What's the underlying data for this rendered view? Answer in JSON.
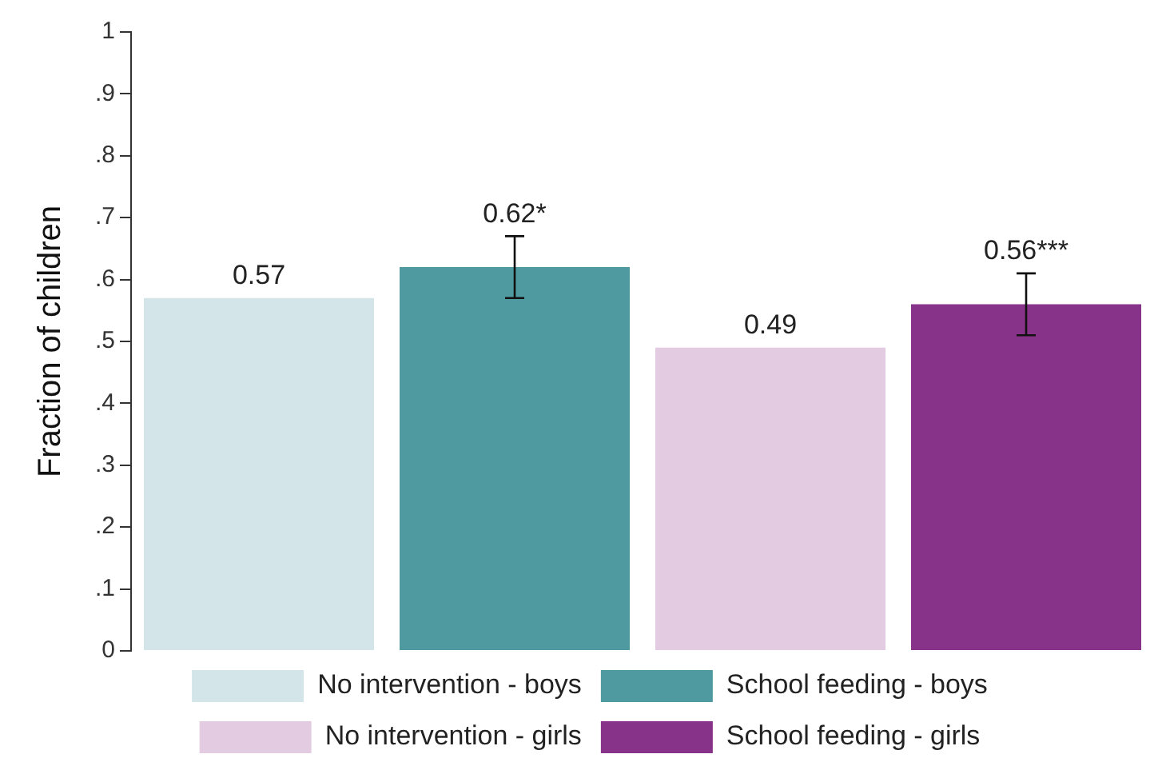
{
  "chart_data": {
    "type": "bar",
    "ylabel": "Fraction of children",
    "categories": [
      null,
      null,
      null,
      null
    ],
    "stacked": true,
    "series": [
      {
        "name": "No intervention - boys",
        "color": "#d3e5e8",
        "values": [
          0.57,
          null,
          null,
          null
        ],
        "value_labels": [
          "0.57",
          null,
          null,
          null
        ],
        "errors": [
          null,
          null,
          null,
          null
        ]
      },
      {
        "name": "School feeding - boys",
        "color": "#4f9aa1",
        "values": [
          null,
          0.62,
          null,
          null
        ],
        "value_labels": [
          null,
          "0.62*",
          null,
          null
        ],
        "errors": [
          null,
          0.05,
          null,
          null
        ]
      },
      {
        "name": "No intervention - girls",
        "color": "#e3cce2",
        "values": [
          null,
          null,
          0.49,
          null
        ],
        "value_labels": [
          null,
          null,
          "0.49",
          null
        ],
        "errors": [
          null,
          null,
          null,
          null
        ]
      },
      {
        "name": "School feeding - girls",
        "color": "#873389",
        "values": [
          null,
          null,
          null,
          0.56
        ],
        "value_labels": [
          null,
          null,
          null,
          "0.56***"
        ],
        "errors": [
          null,
          null,
          null,
          0.05
        ]
      }
    ],
    "ylim": [
      0,
      1
    ],
    "yticks": [
      0,
      {
        "value": 0.1,
        "label": ".1"
      },
      {
        "value": 0.2,
        "label": ".2"
      },
      {
        "value": 0.3,
        "label": ".3"
      },
      {
        "value": 0.4,
        "label": ".4"
      },
      {
        "value": 0.5,
        "label": ".5"
      },
      {
        "value": 0.6,
        "label": ".6"
      },
      {
        "value": 0.7,
        "label": ".7"
      },
      {
        "value": 0.8,
        "label": ".8"
      },
      {
        "value": 0.9,
        "label": ".9"
      },
      1
    ],
    "tick_labels": "y",
    "grid": false,
    "legend": "bottom"
  }
}
